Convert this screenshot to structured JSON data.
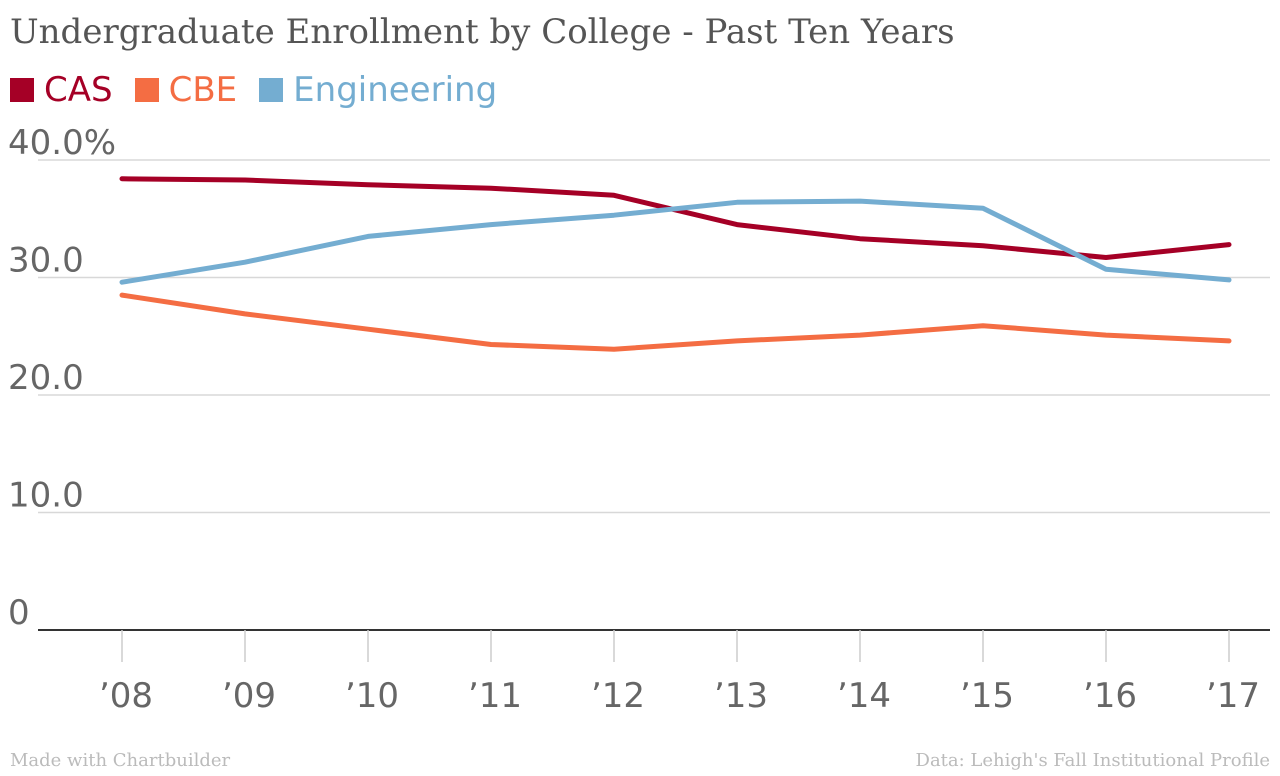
{
  "chart_data": {
    "type": "line",
    "title": "Undergraduate Enrollment by College - Past Ten Years",
    "xlabel": "",
    "ylabel": "",
    "categories": [
      "’08",
      "’09",
      "’10",
      "’11",
      "’12",
      "’13",
      "’14",
      "’15",
      "’16",
      "’17"
    ],
    "ylim": [
      0,
      40
    ],
    "yticks": [
      0,
      10,
      20,
      30,
      40
    ],
    "ytick_labels": [
      "0",
      "10.0",
      "20.0",
      "30.0",
      "40.0%"
    ],
    "grid": true,
    "legend_position": "top-left",
    "series": [
      {
        "name": "CAS",
        "color": "#a50026",
        "values": [
          38.4,
          38.3,
          37.9,
          37.6,
          37.0,
          34.5,
          33.3,
          32.7,
          31.7,
          32.8
        ]
      },
      {
        "name": "CBE",
        "color": "#f46d43",
        "values": [
          28.5,
          26.9,
          25.6,
          24.3,
          23.9,
          24.6,
          25.1,
          25.9,
          25.1,
          24.6
        ]
      },
      {
        "name": "Engineering",
        "color": "#74add1",
        "values": [
          29.6,
          31.3,
          33.5,
          34.5,
          35.3,
          36.4,
          36.5,
          35.9,
          30.7,
          29.8
        ]
      }
    ]
  },
  "footer": {
    "credit": "Made with Chartbuilder",
    "source": "Data: Lehigh's Fall Institutional Profile"
  }
}
